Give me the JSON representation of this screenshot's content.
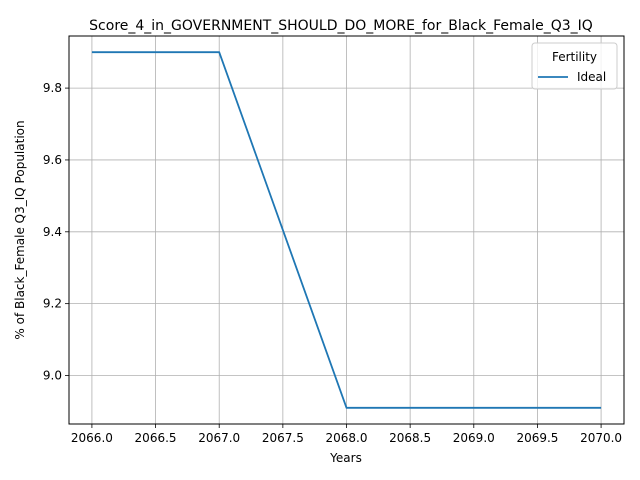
{
  "chart_data": {
    "type": "line",
    "title": "Score_4_in_GOVERNMENT_SHOULD_DO_MORE_for_Black_Female_Q3_IQ",
    "xlabel": "Years",
    "ylabel": "% of Black_Female Q3_IQ Population",
    "xlim": [
      2065.82,
      2070.18
    ],
    "ylim": [
      8.865,
      9.945
    ],
    "xticks": [
      2066.0,
      2066.5,
      2067.0,
      2067.5,
      2068.0,
      2068.5,
      2069.0,
      2069.5,
      2070.0
    ],
    "xtick_labels": [
      "2066.0",
      "2066.5",
      "2067.0",
      "2067.5",
      "2068.0",
      "2068.5",
      "2069.0",
      "2069.5",
      "2070.0"
    ],
    "yticks": [
      9.0,
      9.2,
      9.4,
      9.6,
      9.8
    ],
    "ytick_labels": [
      "9.0",
      "9.2",
      "9.4",
      "9.6",
      "9.8"
    ],
    "grid": true,
    "legend": {
      "title": "Fertility",
      "position": "top-right"
    },
    "series": [
      {
        "name": "Ideal",
        "color": "#1f77b4",
        "x": [
          2066,
          2067,
          2068,
          2069,
          2070
        ],
        "y": [
          9.9,
          9.9,
          8.91,
          8.91,
          8.91
        ]
      }
    ]
  }
}
